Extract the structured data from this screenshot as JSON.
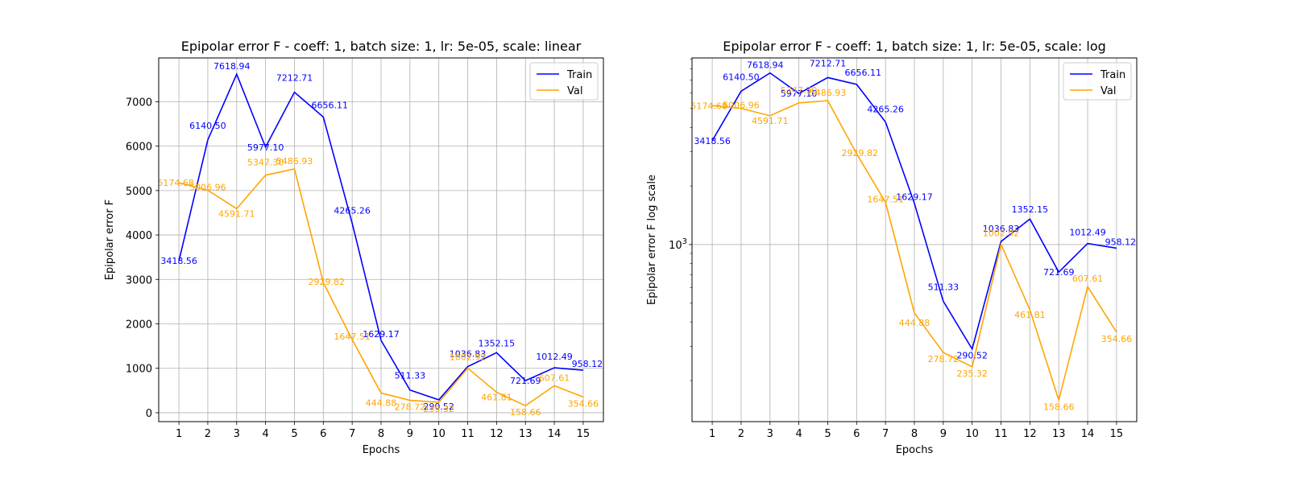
{
  "chart_data": [
    {
      "type": "line",
      "title": "Epipolar error F - coeff: 1, batch size: 1, lr: 5e-05, scale: linear",
      "xlabel": "Epochs",
      "ylabel": "Epipolar error F",
      "yscale": "linear",
      "x": [
        1,
        2,
        3,
        4,
        5,
        6,
        7,
        8,
        9,
        10,
        11,
        12,
        13,
        14,
        15
      ],
      "x_ticks": [
        "1",
        "2",
        "3",
        "4",
        "5",
        "6",
        "7",
        "8",
        "9",
        "10",
        "11",
        "12",
        "13",
        "14",
        "15"
      ],
      "y_ticks": [
        {
          "value": 0,
          "label": "0"
        },
        {
          "value": 1000,
          "label": "1000"
        },
        {
          "value": 2000,
          "label": "2000"
        },
        {
          "value": 3000,
          "label": "3000"
        },
        {
          "value": 4000,
          "label": "4000"
        },
        {
          "value": 5000,
          "label": "5000"
        },
        {
          "value": 6000,
          "label": "6000"
        },
        {
          "value": 7000,
          "label": "7000"
        }
      ],
      "xlim": [
        0.3,
        15.7
      ],
      "ylim": [
        -200,
        7985
      ],
      "grid": true,
      "legend_position": "top-right",
      "series": [
        {
          "name": "Train",
          "color": "#0000ff",
          "values": [
            3418.56,
            6140.5,
            7618.94,
            5977.1,
            7212.71,
            6656.11,
            4265.26,
            1629.17,
            511.33,
            290.52,
            1036.83,
            1352.15,
            721.69,
            1012.49,
            958.12
          ],
          "labels": [
            "3418.56",
            "6140.50",
            "7618.94",
            "5977.10",
            "7212.71",
            "6656.11",
            "4265.26",
            "1629.17",
            "511.33",
            "290.52",
            "1036.83",
            "1352.15",
            "721.69",
            "1012.49",
            "958.12"
          ]
        },
        {
          "name": "Val",
          "color": "#ffa500",
          "values": [
            5174.68,
            5006.96,
            4591.71,
            5347.3,
            5486.93,
            2929.82,
            1647.51,
            444.88,
            278.72,
            235.32,
            1002.92,
            461.81,
            158.66,
            607.61,
            354.66
          ],
          "labels": [
            "5174.68",
            "5006.96",
            "4591.71",
            "5347.30",
            "5486.93",
            "2929.82",
            "1647.51",
            "444.88",
            "278.72",
            "235.32",
            "1002.92",
            "461.81",
            "158.66",
            "607.61",
            "354.66"
          ]
        }
      ]
    },
    {
      "type": "line",
      "title": "Epipolar error F - coeff: 1, batch size: 1, lr: 5e-05, scale: log",
      "xlabel": "Epochs",
      "ylabel": "Epipolar error F log scale",
      "yscale": "log",
      "x": [
        1,
        2,
        3,
        4,
        5,
        6,
        7,
        8,
        9,
        10,
        11,
        12,
        13,
        14,
        15
      ],
      "x_ticks": [
        "1",
        "2",
        "3",
        "4",
        "5",
        "6",
        "7",
        "8",
        "9",
        "10",
        "11",
        "12",
        "13",
        "14",
        "15"
      ],
      "y_ticks": [
        {
          "value": 1000,
          "label_base": "10",
          "label_exp": "3"
        }
      ],
      "xlim": [
        0.3,
        15.7
      ],
      "ylim": [
        123,
        9100
      ],
      "grid": true,
      "legend_position": "top-right",
      "series": [
        {
          "name": "Train",
          "color": "#0000ff",
          "values": [
            3418.56,
            6140.5,
            7618.94,
            5977.1,
            7212.71,
            6656.11,
            4265.26,
            1629.17,
            511.33,
            290.52,
            1036.83,
            1352.15,
            721.69,
            1012.49,
            958.12
          ],
          "labels": [
            "3418.56",
            "6140.50",
            "7618.94",
            "5977.10",
            "7212.71",
            "6656.11",
            "4265.26",
            "1629.17",
            "511.33",
            "290.52",
            "1036.83",
            "1352.15",
            "721.69",
            "1012.49",
            "958.12"
          ]
        },
        {
          "name": "Val",
          "color": "#ffa500",
          "values": [
            5174.68,
            5006.96,
            4591.71,
            5347.3,
            5486.93,
            2929.82,
            1647.51,
            444.88,
            278.72,
            235.32,
            1002.92,
            461.81,
            158.66,
            607.61,
            354.66
          ],
          "labels": [
            "5174.68",
            "5006.96",
            "4591.71",
            "5347.30",
            "5486.93",
            "2929.82",
            "1647.51",
            "444.88",
            "278.72",
            "235.32",
            "1002.92",
            "461.81",
            "158.66",
            "607.61",
            "354.66"
          ]
        }
      ]
    }
  ]
}
